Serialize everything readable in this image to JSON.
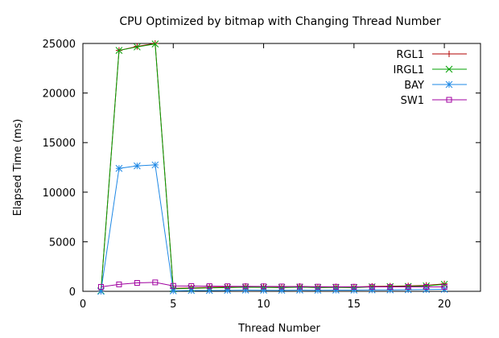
{
  "chart_data": {
    "type": "line",
    "title": "CPU Optimized by bitmap with Changing Thread Number",
    "xlabel": "Thread Number",
    "ylabel": "Elapsed Time (ms)",
    "xlim": [
      0,
      22
    ],
    "ylim": [
      0,
      25000
    ],
    "xticks": [
      0,
      5,
      10,
      15,
      20
    ],
    "yticks": [
      0,
      5000,
      10000,
      15000,
      20000,
      25000
    ],
    "grid": false,
    "legend_position": "top-right",
    "x": [
      1,
      2,
      3,
      4,
      5,
      6,
      7,
      8,
      9,
      10,
      11,
      12,
      13,
      14,
      15,
      16,
      17,
      18,
      19,
      20
    ],
    "series": [
      {
        "name": "RGL1",
        "color": "#b00000",
        "marker": "plus",
        "values": [
          50,
          24300,
          24700,
          25000,
          300,
          350,
          400,
          450,
          500,
          480,
          450,
          500,
          420,
          450,
          430,
          500,
          520,
          550,
          600,
          750
        ]
      },
      {
        "name": "IRGL1",
        "color": "#00a000",
        "marker": "cross",
        "values": [
          50,
          24300,
          24650,
          24950,
          250,
          300,
          350,
          380,
          420,
          400,
          380,
          420,
          380,
          400,
          380,
          450,
          480,
          500,
          550,
          700
        ]
      },
      {
        "name": "BAY",
        "color": "#1e88e5",
        "marker": "star",
        "values": [
          0,
          12400,
          12650,
          12750,
          50,
          80,
          80,
          100,
          120,
          110,
          100,
          120,
          110,
          120,
          120,
          140,
          140,
          160,
          180,
          200
        ]
      },
      {
        "name": "SW1",
        "color": "#a000a0",
        "marker": "square",
        "values": [
          450,
          700,
          850,
          900,
          550,
          530,
          520,
          510,
          500,
          500,
          490,
          480,
          470,
          460,
          460,
          460,
          450,
          450,
          450,
          450
        ]
      }
    ]
  }
}
